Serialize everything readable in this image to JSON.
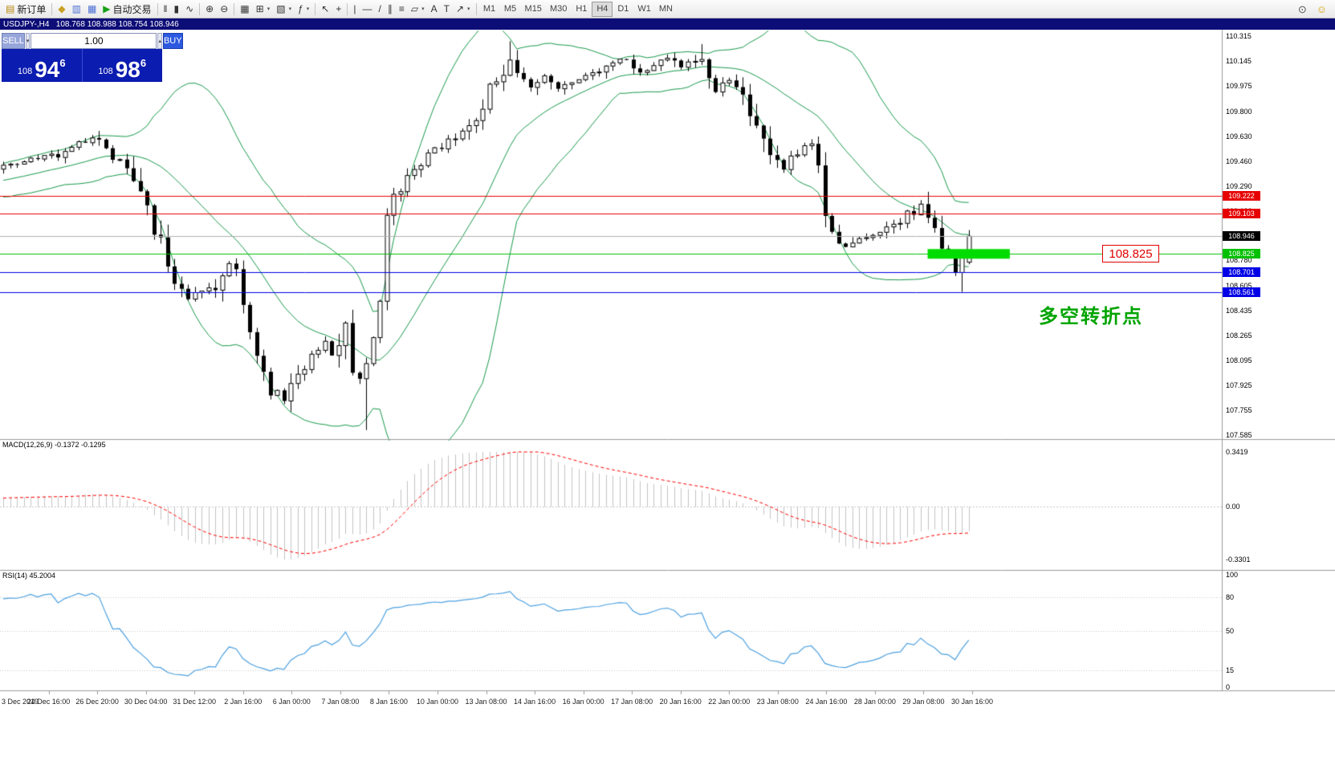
{
  "toolbar": {
    "groups": [
      {
        "items": [
          {
            "name": "new-order-button",
            "icon": "new-order-icon",
            "glyph": "▤",
            "glyph_color": "#b8860b",
            "label": "新订单"
          }
        ]
      },
      {
        "items": [
          {
            "name": "market-watch-button",
            "icon": "market-watch-icon",
            "glyph": "◆",
            "glyph_color": "#c8a020"
          },
          {
            "name": "data-window-button",
            "icon": "data-window-icon",
            "glyph": "▥",
            "glyph_color": "#4a6fd4"
          },
          {
            "name": "terminal-button",
            "icon": "terminal-icon",
            "glyph": "▦",
            "glyph_color": "#4a6fd4"
          },
          {
            "name": "autotrading-button",
            "icon": "autotrading-icon",
            "glyph": "▶",
            "glyph_color": "#18a018",
            "label": "自动交易"
          }
        ]
      },
      {
        "items": [
          {
            "name": "bar-chart-button",
            "icon": "bar-chart-icon",
            "glyph": "‖"
          },
          {
            "name": "candlestick-chart-button",
            "icon": "candlestick-chart-icon",
            "glyph": "▮"
          },
          {
            "name": "line-chart-button",
            "icon": "line-chart-icon",
            "glyph": "∿"
          }
        ]
      },
      {
        "items": [
          {
            "name": "zoom-in-button",
            "icon": "zoom-in-icon",
            "glyph": "⊕"
          },
          {
            "name": "zoom-out-button",
            "icon": "zoom-out-icon",
            "glyph": "⊖"
          }
        ]
      },
      {
        "items": [
          {
            "name": "tile-windows-button",
            "icon": "tile-windows-icon",
            "glyph": "▦"
          },
          {
            "name": "new-chart-button",
            "icon": "new-chart-icon",
            "glyph": "⊞",
            "dropdown": true
          },
          {
            "name": "profiles-button",
            "icon": "profiles-icon",
            "glyph": "▧",
            "dropdown": true
          },
          {
            "name": "indicators-button",
            "icon": "indicators-icon",
            "glyph": "ƒ",
            "dropdown": true
          }
        ]
      },
      {
        "items": [
          {
            "name": "cursor-button",
            "icon": "cursor-icon",
            "glyph": "↖"
          },
          {
            "name": "crosshair-button",
            "icon": "crosshair-icon",
            "glyph": "+"
          }
        ]
      },
      {
        "items": [
          {
            "name": "vertical-line-button",
            "icon": "vertical-line-icon",
            "glyph": "|"
          },
          {
            "name": "horizontal-line-button",
            "icon": "horizontal-line-icon",
            "glyph": "—"
          },
          {
            "name": "trendline-button",
            "icon": "trendline-icon",
            "glyph": "/"
          },
          {
            "name": "channel-button",
            "icon": "channel-icon",
            "glyph": "∥"
          },
          {
            "name": "fibonacci-button",
            "icon": "fibonacci-icon",
            "glyph": "≡"
          },
          {
            "name": "shapes-button",
            "icon": "shapes-icon",
            "glyph": "▱",
            "dropdown": true
          },
          {
            "name": "text-button",
            "icon": "text-icon",
            "glyph": "A"
          },
          {
            "name": "label-button",
            "icon": "label-icon",
            "glyph": "T"
          },
          {
            "name": "arrows-button",
            "icon": "arrows-icon",
            "glyph": "↗",
            "dropdown": true
          }
        ]
      }
    ],
    "timeframes": [
      "M1",
      "M5",
      "M15",
      "M30",
      "H1",
      "H4",
      "D1",
      "W1",
      "MN"
    ],
    "active_timeframe": "H4",
    "right_icons": [
      {
        "name": "search-button",
        "icon": "search-icon",
        "glyph": "⊙",
        "glyph_color": "#555555"
      },
      {
        "name": "community-button",
        "icon": "community-icon",
        "glyph": "☺",
        "glyph_color": "#d2a000"
      }
    ]
  },
  "chart_title": "USDJPY-,H4   108.768 108.988 108.754 108.946",
  "trade_panel": {
    "sell_label": "SELL",
    "buy_label": "BUY",
    "volume": "1.00",
    "spin_down_glyph": "▾",
    "spin_up_glyph": "▴",
    "sell_price": {
      "small": "108",
      "big": "94",
      "sup": "6"
    },
    "buy_price": {
      "small": "108",
      "big": "98",
      "sup": "6"
    }
  },
  "main_chart": {
    "price_scale_labels": [
      "110.315",
      "110.145",
      "109.975",
      "109.800",
      "109.630",
      "109.460",
      "109.290",
      "109.120",
      "108.950",
      "108.780",
      "108.605",
      "108.435",
      "108.265",
      "108.095",
      "107.925",
      "107.755",
      "107.585"
    ],
    "hlines": [
      {
        "price": 109.222,
        "label": "109.222",
        "color": "#e60000"
      },
      {
        "price": 109.103,
        "label": "109.103",
        "color": "#e60000"
      },
      {
        "price": 108.825,
        "label": "108.825",
        "color": "#00c000"
      },
      {
        "price": 108.701,
        "label": "108.701",
        "color": "#0000e6"
      },
      {
        "price": 108.561,
        "label": "108.561",
        "color": "#0000e6"
      }
    ],
    "current_price": {
      "price": 108.946,
      "label": "108.946",
      "color": "#000000"
    },
    "highlight": {
      "price": 108.825,
      "from_index": 135,
      "to_index": 147,
      "color": "#00dc00"
    }
  },
  "annotations": {
    "price_callout": "108.825",
    "turning_point_text": "多空转折点"
  },
  "macd": {
    "label": "MACD(12,26,9) -0.1372 -0.1295",
    "scale_labels": [
      "0.3419",
      "0.00",
      "-0.3301"
    ],
    "scale_values": [
      0.3419,
      0,
      -0.3301
    ]
  },
  "rsi": {
    "label": "RSI(14) 45.2004",
    "scale_labels": [
      "100",
      "80",
      "50",
      "15",
      "0"
    ],
    "scale_values": [
      100,
      80,
      50,
      15,
      0
    ],
    "levels": [
      80,
      50,
      15
    ]
  },
  "time_axis": [
    "3 Dec 2019",
    "24 Dec 16:00",
    "26 Dec 20:00",
    "30 Dec 04:00",
    "31 Dec 12:00",
    "2 Jan 16:00",
    "6 Jan 00:00",
    "7 Jan 08:00",
    "8 Jan 16:00",
    "10 Jan 00:00",
    "13 Jan 08:00",
    "14 Jan 16:00",
    "16 Jan 00:00",
    "17 Jan 08:00",
    "20 Jan 16:00",
    "22 Jan 00:00",
    "23 Jan 08:00",
    "24 Jan 16:00",
    "28 Jan 00:00",
    "29 Jan 08:00",
    "30 Jan 16:00"
  ],
  "chart_data": {
    "type": "candlestick",
    "symbol": "USDJPY-",
    "timeframe": "H4",
    "last_ohlc": {
      "open": 108.768,
      "high": 108.988,
      "low": 108.754,
      "close": 108.946
    },
    "price_axis": {
      "max": 110.342,
      "min": 107.558
    },
    "candle_count": 142,
    "price_path": [
      [
        0,
        109.42
      ],
      [
        4,
        109.46
      ],
      [
        8,
        109.5
      ],
      [
        11,
        109.58
      ],
      [
        13,
        109.62
      ],
      [
        15,
        109.52
      ],
      [
        17,
        109.45
      ],
      [
        19,
        109.32
      ],
      [
        21,
        109.1
      ],
      [
        23,
        108.88
      ],
      [
        25,
        108.62
      ],
      [
        27,
        108.52
      ],
      [
        29,
        108.56
      ],
      [
        31,
        108.6
      ],
      [
        33,
        108.76
      ],
      [
        34,
        108.7
      ],
      [
        35,
        108.52
      ],
      [
        36,
        108.28
      ],
      [
        37,
        108.08
      ],
      [
        39,
        107.9
      ],
      [
        41,
        107.84
      ],
      [
        43,
        108.0
      ],
      [
        45,
        108.1
      ],
      [
        47,
        108.24
      ],
      [
        48,
        108.14
      ],
      [
        50,
        108.36
      ],
      [
        51,
        108.06
      ],
      [
        52,
        107.98
      ],
      [
        54,
        108.22
      ],
      [
        55,
        108.45
      ],
      [
        56,
        109.05
      ],
      [
        57,
        109.18
      ],
      [
        58,
        109.3
      ],
      [
        60,
        109.42
      ],
      [
        62,
        109.5
      ],
      [
        64,
        109.55
      ],
      [
        66,
        109.62
      ],
      [
        68,
        109.7
      ],
      [
        70,
        109.85
      ],
      [
        72,
        110.02
      ],
      [
        74,
        110.16
      ],
      [
        75,
        110.08
      ],
      [
        77,
        109.96
      ],
      [
        79,
        110.04
      ],
      [
        81,
        109.95
      ],
      [
        83,
        110.0
      ],
      [
        85,
        110.05
      ],
      [
        87,
        110.08
      ],
      [
        89,
        110.14
      ],
      [
        91,
        110.16
      ],
      [
        93,
        110.08
      ],
      [
        95,
        110.12
      ],
      [
        97,
        110.16
      ],
      [
        99,
        110.1
      ],
      [
        101,
        110.16
      ],
      [
        102,
        110.2
      ],
      [
        103,
        110.02
      ],
      [
        104,
        109.94
      ],
      [
        106,
        110.0
      ],
      [
        108,
        109.88
      ],
      [
        110,
        109.72
      ],
      [
        112,
        109.52
      ],
      [
        114,
        109.4
      ],
      [
        116,
        109.52
      ],
      [
        118,
        109.6
      ],
      [
        119,
        109.45
      ],
      [
        120,
        109.15
      ],
      [
        121,
        108.94
      ],
      [
        123,
        108.86
      ],
      [
        125,
        108.92
      ],
      [
        127,
        108.94
      ],
      [
        129,
        109.0
      ],
      [
        131,
        109.06
      ],
      [
        133,
        109.12
      ],
      [
        134,
        109.16
      ],
      [
        135,
        109.1
      ],
      [
        136,
        109.0
      ],
      [
        137,
        108.92
      ],
      [
        138,
        108.8
      ],
      [
        139,
        108.68
      ],
      [
        140,
        108.84
      ],
      [
        141,
        108.946
      ]
    ],
    "wick_overrides": [
      {
        "index": 53,
        "low": 107.62
      },
      {
        "index": 74,
        "high": 110.28
      },
      {
        "index": 102,
        "high": 110.26
      },
      {
        "index": 140,
        "low": 108.565
      },
      {
        "index": 141,
        "open": 108.768,
        "high": 108.988,
        "low": 108.754,
        "close": 108.946
      }
    ],
    "indicators": {
      "bollinger": {
        "period": 20,
        "deviation": 2,
        "color": "#189a4a"
      },
      "macd": {
        "fast": 12,
        "slow": 26,
        "signal": 9,
        "histogram_color": "#c4c4c4",
        "signal_color": "#ff0000",
        "scale_max": 0.3419,
        "scale_min": -0.3301
      },
      "rsi": {
        "period": 14,
        "color": "#4da1e0",
        "value": 45.2004
      }
    }
  }
}
